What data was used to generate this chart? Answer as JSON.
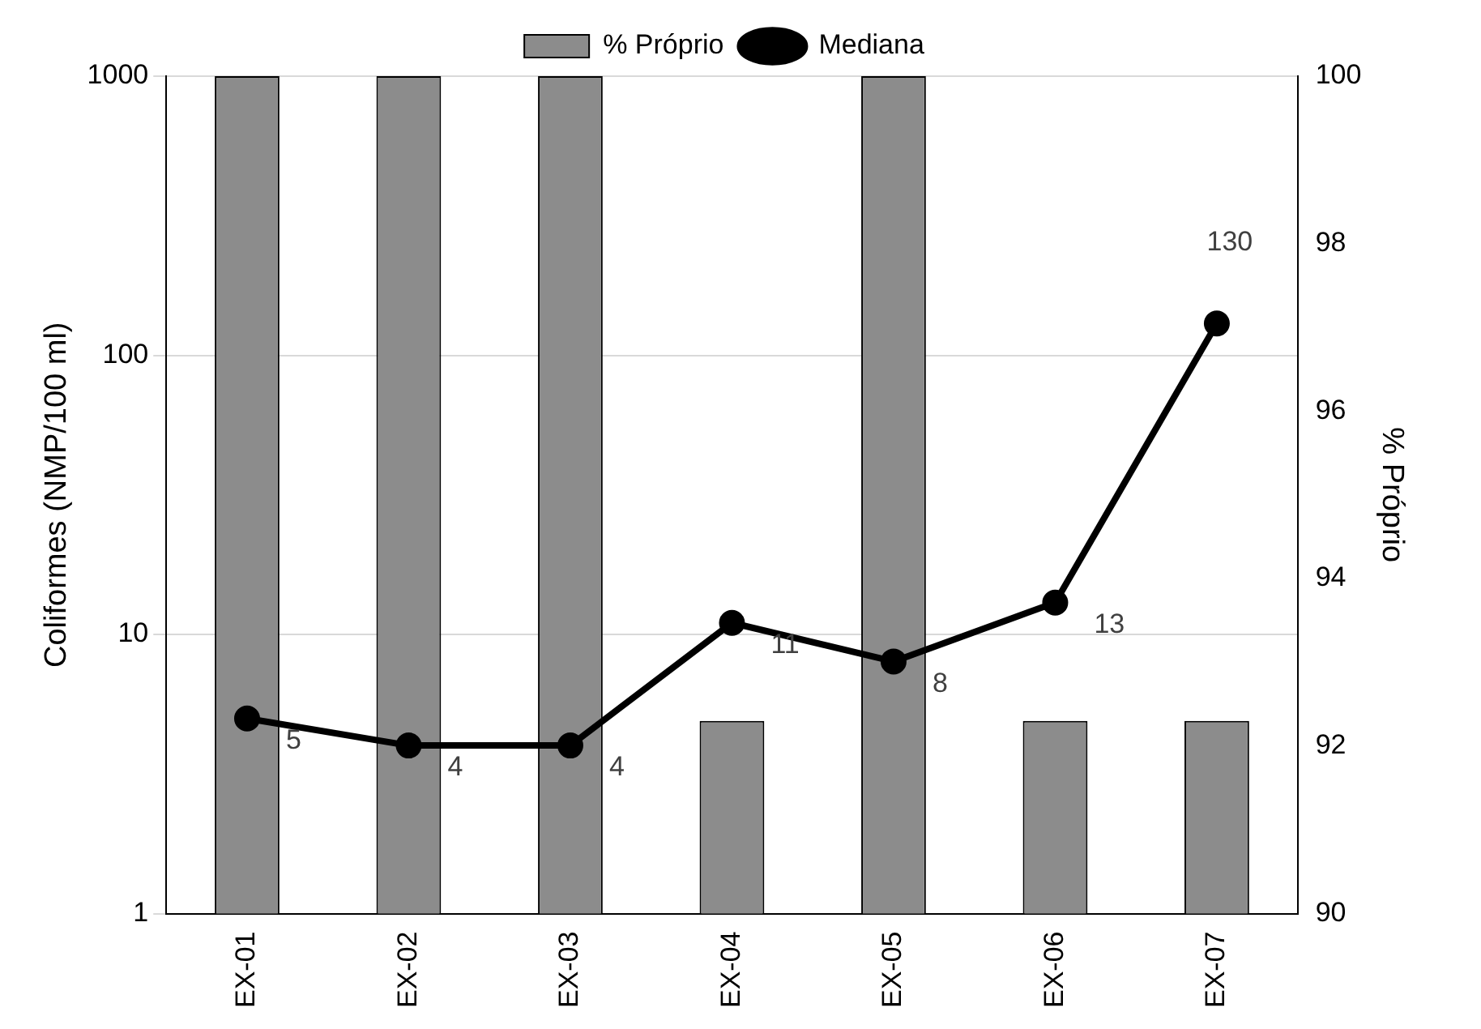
{
  "chart_data": {
    "type": "bar",
    "categories": [
      "EX-01",
      "EX-02",
      "EX-03",
      "EX-04",
      "EX-05",
      "EX-06",
      "EX-07"
    ],
    "ylabel": "Coliformes (NMP/100 ml)",
    "y2label": "% Próprio",
    "log": "y",
    "ylim": [
      1,
      1000
    ],
    "yticks": [
      1,
      10,
      100,
      1000
    ],
    "y2lim": [
      90,
      100
    ],
    "y2ticks": [
      90,
      92,
      94,
      96,
      98,
      100
    ],
    "grid": "y",
    "legend": "top",
    "series": [
      {
        "name": "% Próprio",
        "axis": "y2",
        "color": "#8c8c8c",
        "values": [
          100,
          100,
          100,
          92.3,
          100,
          92.3,
          92.3
        ]
      },
      {
        "name": "Mediana",
        "type": "line",
        "axis": "y",
        "color": "#000000",
        "marker": "circle",
        "line_style": "solid",
        "values": [
          5,
          4,
          4,
          11,
          8,
          13,
          130
        ],
        "value_labels": [
          "5",
          "4",
          "4",
          "11",
          "8",
          "13",
          "130"
        ]
      }
    ]
  }
}
